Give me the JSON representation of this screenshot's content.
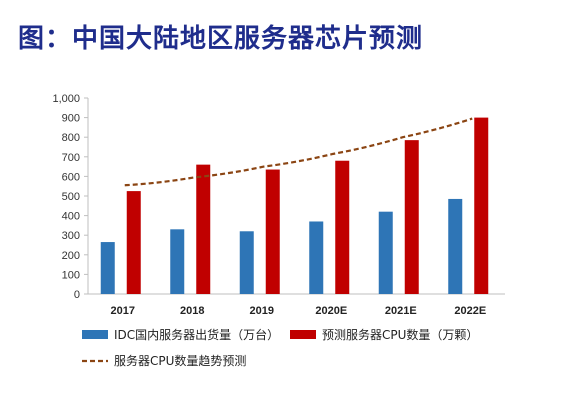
{
  "page": {
    "title": "图：中国大陆地区服务器芯片预测"
  },
  "chart_data": {
    "type": "bar",
    "categories": [
      "2017",
      "2018",
      "2019",
      "2020E",
      "2021E",
      "2022E"
    ],
    "yticks": [
      "0",
      "100",
      "200",
      "300",
      "400",
      "500",
      "600",
      "700",
      "800",
      "900",
      "1,000"
    ],
    "ylim": [
      0,
      1000
    ],
    "grid": false,
    "legend_position": "bottom",
    "series": [
      {
        "name": "IDC国内服务器出货量（万台）",
        "type": "bar",
        "color": "#2e75b6",
        "values": [
          265,
          330,
          320,
          370,
          420,
          485
        ]
      },
      {
        "name": "预测服务器CPU数量（万颗）",
        "type": "bar",
        "color": "#c00000",
        "values": [
          525,
          660,
          635,
          680,
          785,
          900
        ]
      },
      {
        "name": "服务器CPU数量趋势预测",
        "type": "line",
        "style": "dashed",
        "color": "#8b4513",
        "values": [
          555,
          595,
          650,
          715,
          800,
          895
        ]
      }
    ]
  }
}
